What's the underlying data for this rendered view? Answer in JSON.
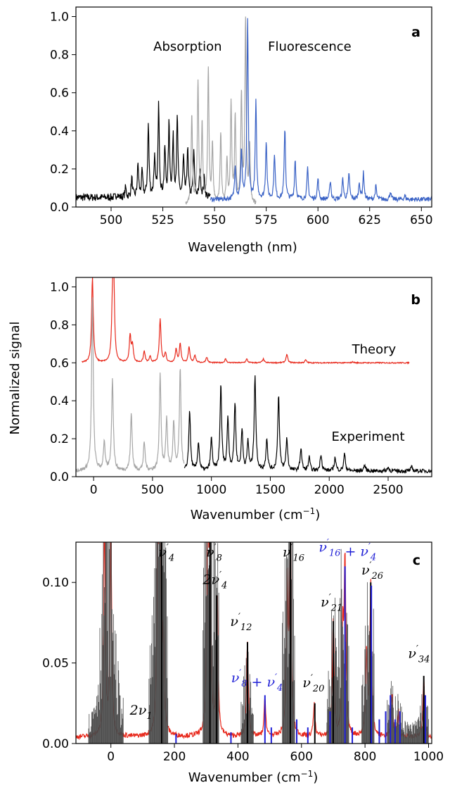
{
  "figure": {
    "shared_ylabel": "Normalized signal"
  },
  "chart_data": [
    {
      "id": "a",
      "type": "line",
      "panel_label": "a",
      "xlabel": "Wavelength (nm)",
      "ylabel": "",
      "xlim": [
        483,
        655
      ],
      "ylim": [
        0,
        1.05
      ],
      "xticks": [
        500,
        525,
        550,
        575,
        600,
        625,
        650
      ],
      "yticks": [
        0.0,
        0.2,
        0.4,
        0.6,
        0.8,
        1.0
      ],
      "ytick_labels": [
        "0.0",
        "0.2",
        "0.4",
        "0.6",
        "0.8",
        "1.0"
      ],
      "annotations": [
        {
          "text": "Absorption",
          "x": 537,
          "y": 0.82
        },
        {
          "text": "Fluorescence",
          "x": 596,
          "y": 0.82
        }
      ],
      "series": [
        {
          "color": "#000000",
          "baseline": 0.05,
          "x_range": [
            483,
            548
          ],
          "noise": 0.02,
          "peaks": [
            [
              497,
              0.05
            ],
            [
              503,
              0.07
            ],
            [
              507,
              0.1
            ],
            [
              510,
              0.15
            ],
            [
              513,
              0.22
            ],
            [
              515,
              0.18
            ],
            [
              518,
              0.43
            ],
            [
              521,
              0.25
            ],
            [
              523,
              0.53
            ],
            [
              526,
              0.3
            ],
            [
              528,
              0.43
            ],
            [
              530,
              0.35
            ],
            [
              532,
              0.46
            ],
            [
              535,
              0.25
            ],
            [
              537,
              0.3
            ],
            [
              540,
              0.28
            ],
            [
              543,
              0.2
            ],
            [
              545,
              0.15
            ]
          ]
        },
        {
          "color": "#a6a6a6",
          "baseline": 0.01,
          "x_range": [
            536,
            570
          ],
          "noise": 0.01,
          "peaks": [
            [
              539,
              0.47
            ],
            [
              542,
              0.65
            ],
            [
              544,
              0.42
            ],
            [
              547,
              0.71
            ],
            [
              549,
              0.31
            ],
            [
              553,
              0.38
            ],
            [
              556,
              0.24
            ],
            [
              558,
              0.53
            ],
            [
              560,
              0.46
            ],
            [
              563,
              0.58
            ],
            [
              565,
              0.97
            ],
            [
              567,
              0.3
            ]
          ]
        },
        {
          "color": "#3b63c6",
          "baseline": 0.04,
          "x_range": [
            548,
            655
          ],
          "noise": 0.012,
          "peaks": [
            [
              560,
              0.22
            ],
            [
              563,
              0.3
            ],
            [
              566,
              0.99
            ],
            [
              570,
              0.55
            ],
            [
              575,
              0.35
            ],
            [
              579,
              0.28
            ],
            [
              584,
              0.42
            ],
            [
              589,
              0.25
            ],
            [
              595,
              0.2
            ],
            [
              600,
              0.15
            ],
            [
              606,
              0.14
            ],
            [
              612,
              0.15
            ],
            [
              615,
              0.18
            ],
            [
              620,
              0.13
            ],
            [
              622,
              0.18
            ],
            [
              628,
              0.11
            ],
            [
              635,
              0.08
            ],
            [
              642,
              0.06
            ]
          ]
        }
      ]
    },
    {
      "id": "b",
      "type": "line",
      "panel_label": "b",
      "xlabel": "Wavenumber (cm−1)",
      "ylabel": "Normalized signal",
      "xlim": [
        -150,
        2870
      ],
      "ylim": [
        0,
        1.05
      ],
      "xticks": [
        0,
        500,
        1000,
        1500,
        2000,
        2500
      ],
      "yticks": [
        0.0,
        0.2,
        0.4,
        0.6,
        0.8,
        1.0
      ],
      "ytick_labels": [
        "0.0",
        "0.2",
        "0.4",
        "0.6",
        "0.8",
        "1.0"
      ],
      "annotations": [
        {
          "text": "Theory",
          "x": 2380,
          "y": 0.65
        },
        {
          "text": "Experiment",
          "x": 2330,
          "y": 0.19
        }
      ],
      "series": [
        {
          "name": "Theory",
          "color": "#e8291c",
          "baseline": 0.6,
          "x_range": [
            -100,
            2680
          ],
          "noise": 0.003,
          "peaks": [
            [
              -10,
              1.05
            ],
            [
              160,
              0.84
            ],
            [
              170,
              1.05
            ],
            [
              310,
              0.74
            ],
            [
              330,
              0.69
            ],
            [
              430,
              0.66
            ],
            [
              480,
              0.63
            ],
            [
              565,
              0.83
            ],
            [
              610,
              0.65
            ],
            [
              700,
              0.67
            ],
            [
              735,
              0.7
            ],
            [
              810,
              0.68
            ],
            [
              860,
              0.64
            ],
            [
              960,
              0.63
            ],
            [
              1120,
              0.62
            ],
            [
              1300,
              0.62
            ],
            [
              1440,
              0.62
            ],
            [
              1640,
              0.645
            ],
            [
              1800,
              0.615
            ],
            [
              2200,
              0.605
            ]
          ]
        },
        {
          "color": "#a6a6a6",
          "baseline": 0.03,
          "x_range": [
            -150,
            770
          ],
          "noise": 0.01,
          "peaks": [
            [
              -10,
              0.95
            ],
            [
              90,
              0.18
            ],
            [
              160,
              0.52
            ],
            [
              320,
              0.33
            ],
            [
              430,
              0.18
            ],
            [
              565,
              0.54
            ],
            [
              620,
              0.3
            ],
            [
              680,
              0.28
            ],
            [
              735,
              0.56
            ]
          ]
        },
        {
          "name": "Experiment",
          "color": "#000000",
          "baseline": 0.03,
          "x_range": [
            770,
            2870
          ],
          "noise": 0.01,
          "peaks": [
            [
              815,
              0.35
            ],
            [
              890,
              0.18
            ],
            [
              1000,
              0.2
            ],
            [
              1080,
              0.48
            ],
            [
              1140,
              0.3
            ],
            [
              1200,
              0.38
            ],
            [
              1260,
              0.24
            ],
            [
              1310,
              0.18
            ],
            [
              1370,
              0.53
            ],
            [
              1470,
              0.2
            ],
            [
              1570,
              0.43
            ],
            [
              1640,
              0.2
            ],
            [
              1760,
              0.15
            ],
            [
              1830,
              0.1
            ],
            [
              1930,
              0.12
            ],
            [
              2050,
              0.1
            ],
            [
              2130,
              0.12
            ],
            [
              2300,
              0.06
            ],
            [
              2500,
              0.05
            ],
            [
              2700,
              0.05
            ]
          ]
        }
      ]
    },
    {
      "id": "c",
      "type": "line",
      "panel_label": "c",
      "xlabel": "Wavenumber (cm−1)",
      "ylabel": "",
      "xlim": [
        -110,
        1010
      ],
      "ylim": [
        0,
        0.125
      ],
      "xticks": [
        0,
        200,
        400,
        600,
        800,
        1000
      ],
      "yticks": [
        0.0,
        0.05,
        0.1
      ],
      "ytick_labels": [
        "0.00",
        "0.05",
        "0.10"
      ],
      "series": [
        {
          "color": "#e8291c",
          "baseline": 0.004,
          "x_range": [
            -110,
            1010
          ],
          "noise": 0.0015,
          "peaks": [
            [
              -20,
              0.14
            ],
            [
              0,
              0.13
            ],
            [
              148,
              0.13
            ],
            [
              155,
              0.14
            ],
            [
              165,
              0.06
            ],
            [
              305,
              0.14
            ],
            [
              312,
              0.125
            ],
            [
              335,
              0.09
            ],
            [
              430,
              0.064
            ],
            [
              485,
              0.028
            ],
            [
              555,
              0.1
            ],
            [
              565,
              0.14
            ],
            [
              640,
              0.024
            ],
            [
              700,
              0.075
            ],
            [
              730,
              0.065
            ],
            [
              737,
              0.11
            ],
            [
              805,
              0.055
            ],
            [
              818,
              0.1
            ],
            [
              885,
              0.03
            ],
            [
              905,
              0.02
            ],
            [
              985,
              0.04
            ]
          ]
        },
        {
          "color": "#4a4a4a",
          "type": "stick",
          "sticks": "dense",
          "regions": [
            [
              -70,
              40
            ],
            [
              120,
              180
            ],
            [
              290,
              340
            ],
            [
              410,
              450
            ],
            [
              540,
              580
            ],
            [
              680,
              750
            ],
            [
              790,
              830
            ],
            [
              870,
              1000
            ]
          ]
        },
        {
          "color": "#000000",
          "type": "stick",
          "peaks": [
            [
              160,
              0.13
            ],
            [
              312,
              0.13
            ],
            [
              333,
              0.092
            ],
            [
              430,
              0.063
            ],
            [
              565,
              0.13
            ],
            [
              642,
              0.025
            ],
            [
              700,
              0.076
            ],
            [
              818,
              0.1
            ],
            [
              985,
              0.042
            ]
          ]
        },
        {
          "color": "#1f1fd6",
          "type": "stick",
          "peaks": [
            [
              205,
              0.006
            ],
            [
              378,
              0.007
            ],
            [
              485,
              0.03
            ],
            [
              505,
              0.01
            ],
            [
              585,
              0.015
            ],
            [
              620,
              0.01
            ],
            [
              690,
              0.02
            ],
            [
              737,
              0.11
            ],
            [
              760,
              0.01
            ],
            [
              820,
              0.098
            ],
            [
              845,
              0.015
            ],
            [
              865,
              0.02
            ],
            [
              880,
              0.03
            ],
            [
              895,
              0.015
            ],
            [
              910,
              0.02
            ],
            [
              990,
              0.03
            ]
          ]
        }
      ],
      "mode_labels": [
        {
          "base": "ν",
          "sub": "4",
          "prime": true,
          "x": 175,
          "y": 0.116,
          "color": "#000000"
        },
        {
          "base": "ν",
          "sub": "8",
          "prime": true,
          "x": 325,
          "y": 0.116,
          "color": "#000000"
        },
        {
          "base": "2ν",
          "sub": "4",
          "prime": true,
          "x": 328,
          "y": 0.099,
          "color": "#000000"
        },
        {
          "base": "ν",
          "sub": "12",
          "prime": true,
          "x": 410,
          "y": 0.073,
          "color": "#000000"
        },
        {
          "base": "ν",
          "sub": "16",
          "prime": true,
          "x": 575,
          "y": 0.116,
          "color": "#000000"
        },
        {
          "base": "ν",
          "sub": "16",
          "prime": true,
          "plus": "ν",
          "plus_sub": "4",
          "x": 745,
          "y": 0.119,
          "color": "#1f1fd6"
        },
        {
          "base": "ν",
          "sub": "26",
          "prime": true,
          "x": 823,
          "y": 0.105,
          "color": "#000000"
        },
        {
          "base": "ν",
          "sub": "21",
          "prime": true,
          "x": 695,
          "y": 0.085,
          "color": "#000000"
        },
        {
          "base": "ν",
          "sub": "20",
          "prime": true,
          "x": 638,
          "y": 0.035,
          "color": "#000000"
        },
        {
          "base": "ν",
          "sub": "8",
          "prime": true,
          "plus": "ν",
          "plus_sub": "4",
          "x": 460,
          "y": 0.038,
          "color": "#1f1fd6"
        },
        {
          "base": "2ν",
          "sub": "1",
          "prime": false,
          "x": 95,
          "y": 0.018,
          "color": "#000000"
        },
        {
          "base": "ν",
          "sub": "34",
          "prime": true,
          "x": 970,
          "y": 0.053,
          "color": "#000000"
        }
      ]
    }
  ]
}
